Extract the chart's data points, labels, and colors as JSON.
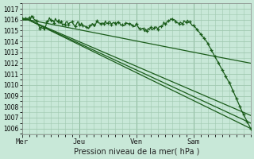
{
  "title": "Pression niveau de la mer( hPa )",
  "bg_color": "#c8e8d8",
  "grid_color": "#a0c8b0",
  "line_color": "#1a5c1a",
  "ylim": [
    1005.5,
    1017.5
  ],
  "yticks": [
    1006,
    1007,
    1008,
    1009,
    1010,
    1011,
    1012,
    1013,
    1014,
    1015,
    1016,
    1017
  ],
  "day_labels": [
    "Mer",
    "Jeu",
    "Ven",
    "Sam"
  ],
  "day_positions": [
    0,
    48,
    96,
    144
  ],
  "xlim": [
    0,
    192
  ]
}
